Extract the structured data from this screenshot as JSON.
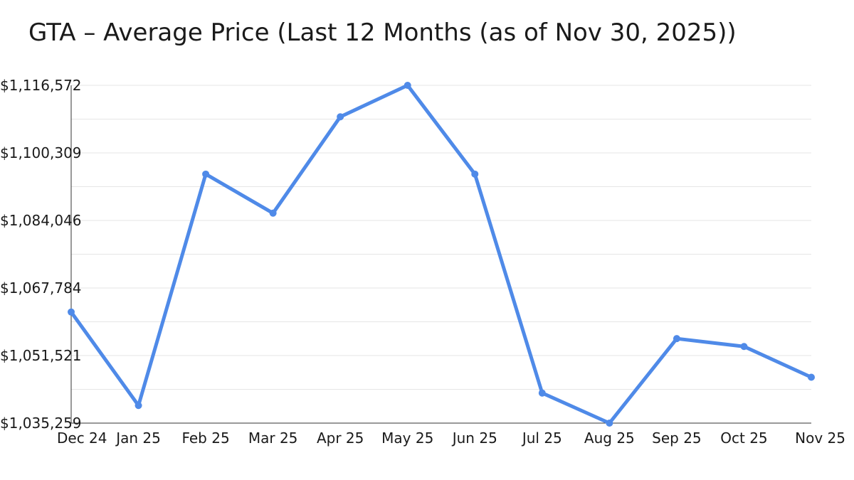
{
  "chart_data": {
    "type": "line",
    "title": "GTA – Average Price (Last 12 Months (as of Nov 30, 2025))",
    "xlabel": "",
    "ylabel": "",
    "categories": [
      "Dec 24",
      "Jan 25",
      "Feb 25",
      "Mar 25",
      "Apr 25",
      "May 25",
      "Jun 25",
      "Jul 25",
      "Aug 25",
      "Sep 25",
      "Oct 25",
      "Nov 25"
    ],
    "series": [
      {
        "values": [
          1062000,
          1039500,
          1095200,
          1085800,
          1109000,
          1116572,
          1095200,
          1042500,
          1035259,
          1055600,
          1053700,
          1046300
        ]
      }
    ],
    "ylim": [
      1035259,
      1116572
    ],
    "yticks": [
      1035259,
      1051521,
      1067784,
      1084046,
      1100309,
      1116572
    ],
    "ytick_labels": [
      "$1,035,259",
      "$1,051,521",
      "$1,067,784",
      "$1,084,046",
      "$1,100,309",
      "$1,116,572"
    ],
    "grid": true,
    "line_color": "#4f8ae8",
    "legend": "none"
  }
}
